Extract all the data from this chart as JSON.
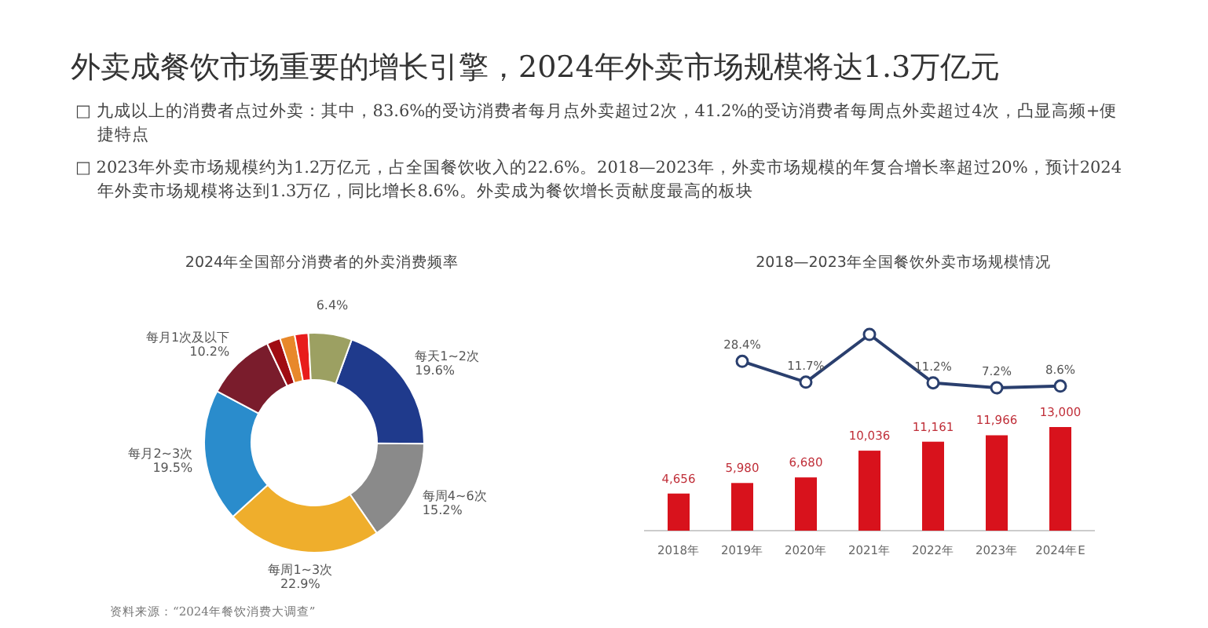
{
  "chart_data": [
    {
      "type": "donut",
      "title": "2024年全国部分消费者的外卖消费频率",
      "categories": [
        "每天1~2次",
        "每周4~6次",
        "每周1~3次",
        "每月2~3次",
        "每月1次及以下",
        null,
        null,
        null,
        null
      ],
      "values": [
        19.6,
        15.2,
        22.9,
        19.5,
        10.2,
        2.0,
        2.2,
        2.0,
        6.4
      ],
      "colors": [
        "#1f3a8c",
        "#8a8a8a",
        "#efae2c",
        "#2a8ccc",
        "#7a1c2c",
        "#a00c12",
        "#e8882a",
        "#e81c1c",
        "#9ca062"
      ],
      "value_labels": [
        "19.6%",
        "15.2%",
        "22.9%",
        "19.5%",
        "10.2%",
        null,
        null,
        null,
        "6.4%"
      ],
      "annotations": [
        "外卖成餐饮市场重要的增长引擎，2024年外卖市场规模将达1.3万亿元",
        "□ 九成以上的消费者点过外卖：其中，83.6%的受访消费者每月点外卖超过2次，41.2%的受访消费者每周点外卖超过4次，凸显高频+便捷特点",
        "□ 2023年外卖市场规模约为1.2万亿元，占全国餐饮收入的22.6%。2018—2023年，外卖市场规模的年复合增长率超过20%，预计2024年外卖市场规模将达到1.3万亿，同比增长8.6%。外卖成为餐饮增长贡献度最高的板块",
        "资料来源：“2024年餐饮消费大调查”"
      ]
    },
    {
      "type": "bar",
      "categories": [
        "2018年",
        "2019年",
        "2020年",
        "2021年",
        "2022年",
        "2023年",
        "2024年E"
      ],
      "color": "#d8121c",
      "values": [
        4656,
        5980,
        6680,
        10036,
        11161,
        11966,
        13000
      ],
      "value_labels": [
        "4,656",
        "5,980",
        "6,680",
        "10,036",
        "11,161",
        "11,966",
        "13,000"
      ]
    },
    {
      "type": "line",
      "title": "2018—2023年全国餐饮外卖市场规模情况",
      "categories": [
        null,
        null,
        null,
        null,
        null,
        null,
        null
      ],
      "color": "#2a3f6e",
      "marker": "circle",
      "values": [
        null,
        28.4,
        11.7,
        50,
        11.2,
        7.2,
        8.6
      ],
      "value_labels": [
        null,
        "28.4%",
        "11.7%",
        null,
        "11.2%",
        "7.2%",
        "8.6%"
      ]
    }
  ]
}
